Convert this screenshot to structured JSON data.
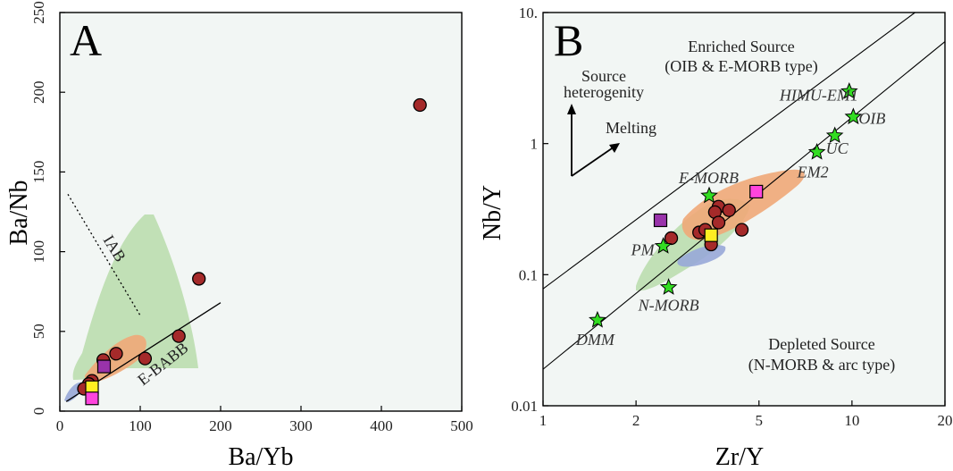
{
  "colors": {
    "plot_bg": "#f2f6f4",
    "sample_circle": "#a52a2a",
    "purple_square": "#9933aa",
    "yellow_square": "#ffee22",
    "magenta_square": "#ff44dd",
    "green_star": "#33dd22",
    "green_field": "#b8dcaa",
    "orange_field": "#f0a878",
    "blue_field": "#98a8d8"
  },
  "chart_data": [
    {
      "type": "scatter",
      "panel_label": "A",
      "xlabel": "Ba/Yb",
      "ylabel": "Ba/Nb",
      "xlim": [
        0,
        500
      ],
      "ylim": [
        0,
        250
      ],
      "xticks": [
        0,
        100,
        200,
        300,
        400,
        500
      ],
      "yticks": [
        0,
        50,
        100,
        150,
        200,
        250
      ],
      "grid": false,
      "samples_circles": [
        [
          448,
          192
        ],
        [
          173,
          83
        ],
        [
          148,
          47
        ],
        [
          106,
          33
        ],
        [
          70,
          36
        ],
        [
          54,
          32
        ],
        [
          40,
          19
        ],
        [
          36,
          17
        ],
        [
          30,
          14
        ]
      ],
      "purple_squares": [
        [
          55,
          28
        ]
      ],
      "yellow_squares": [
        [
          40,
          15
        ]
      ],
      "magenta_squares": [
        [
          40,
          8
        ]
      ],
      "trend_line": [
        [
          8,
          6
        ],
        [
          200,
          68
        ]
      ],
      "iab_line": [
        [
          10,
          136
        ],
        [
          100,
          60
        ]
      ],
      "field_labels": [
        "IAB",
        "E-BABB"
      ]
    },
    {
      "type": "scatter",
      "panel_label": "B",
      "xlabel": "Zr/Y",
      "ylabel": "Nb/Y",
      "xscale": "log",
      "yscale": "log",
      "xlim": [
        1,
        20
      ],
      "ylim": [
        0.01,
        10
      ],
      "xticks": [
        "1",
        "2",
        "5",
        "10",
        "20"
      ],
      "xtick_values": [
        1,
        2,
        5,
        10,
        20
      ],
      "yticks": [
        "0.01",
        "0.1",
        "1",
        "10."
      ],
      "ytick_values": [
        0.01,
        0.1,
        1,
        10
      ],
      "grid": false,
      "samples_circles": [
        [
          3.7,
          0.33
        ],
        [
          3.6,
          0.3
        ],
        [
          4.0,
          0.31
        ],
        [
          3.7,
          0.25
        ],
        [
          4.4,
          0.22
        ],
        [
          3.2,
          0.21
        ],
        [
          3.35,
          0.22
        ],
        [
          2.6,
          0.19
        ],
        [
          3.5,
          0.17
        ]
      ],
      "purple_squares": [
        [
          2.4,
          0.26
        ]
      ],
      "yellow_squares": [
        [
          3.5,
          0.2
        ]
      ],
      "magenta_squares": [
        [
          4.9,
          0.43
        ]
      ],
      "reference_stars": [
        {
          "name": "HIMU-EM1",
          "x": 9.8,
          "y": 2.5
        },
        {
          "name": "OIB",
          "x": 10.1,
          "y": 1.6
        },
        {
          "name": "UC",
          "x": 8.8,
          "y": 1.15
        },
        {
          "name": "EM2",
          "x": 7.7,
          "y": 0.86
        },
        {
          "name": "E-MORB",
          "x": 3.45,
          "y": 0.4
        },
        {
          "name": "PM",
          "x": 2.45,
          "y": 0.165
        },
        {
          "name": "N-MORB",
          "x": 2.55,
          "y": 0.08
        },
        {
          "name": "DMM",
          "x": 1.5,
          "y": 0.045
        }
      ],
      "boundary_lines": [
        [
          [
            1,
            0.078
          ],
          [
            16,
            12.5
          ]
        ],
        [
          [
            1,
            0.019
          ],
          [
            21,
            6.0
          ]
        ]
      ],
      "annotations": {
        "enriched_line1": "Enriched Source",
        "enriched_line2": "(OIB & E-MORB type)",
        "depleted_line1": "Depleted Source",
        "depleted_line2": "(N-MORB & arc type)",
        "heterogeneity_line1": "Source",
        "heterogeneity_line2": "heterogenity",
        "melting": "Melting"
      }
    }
  ]
}
